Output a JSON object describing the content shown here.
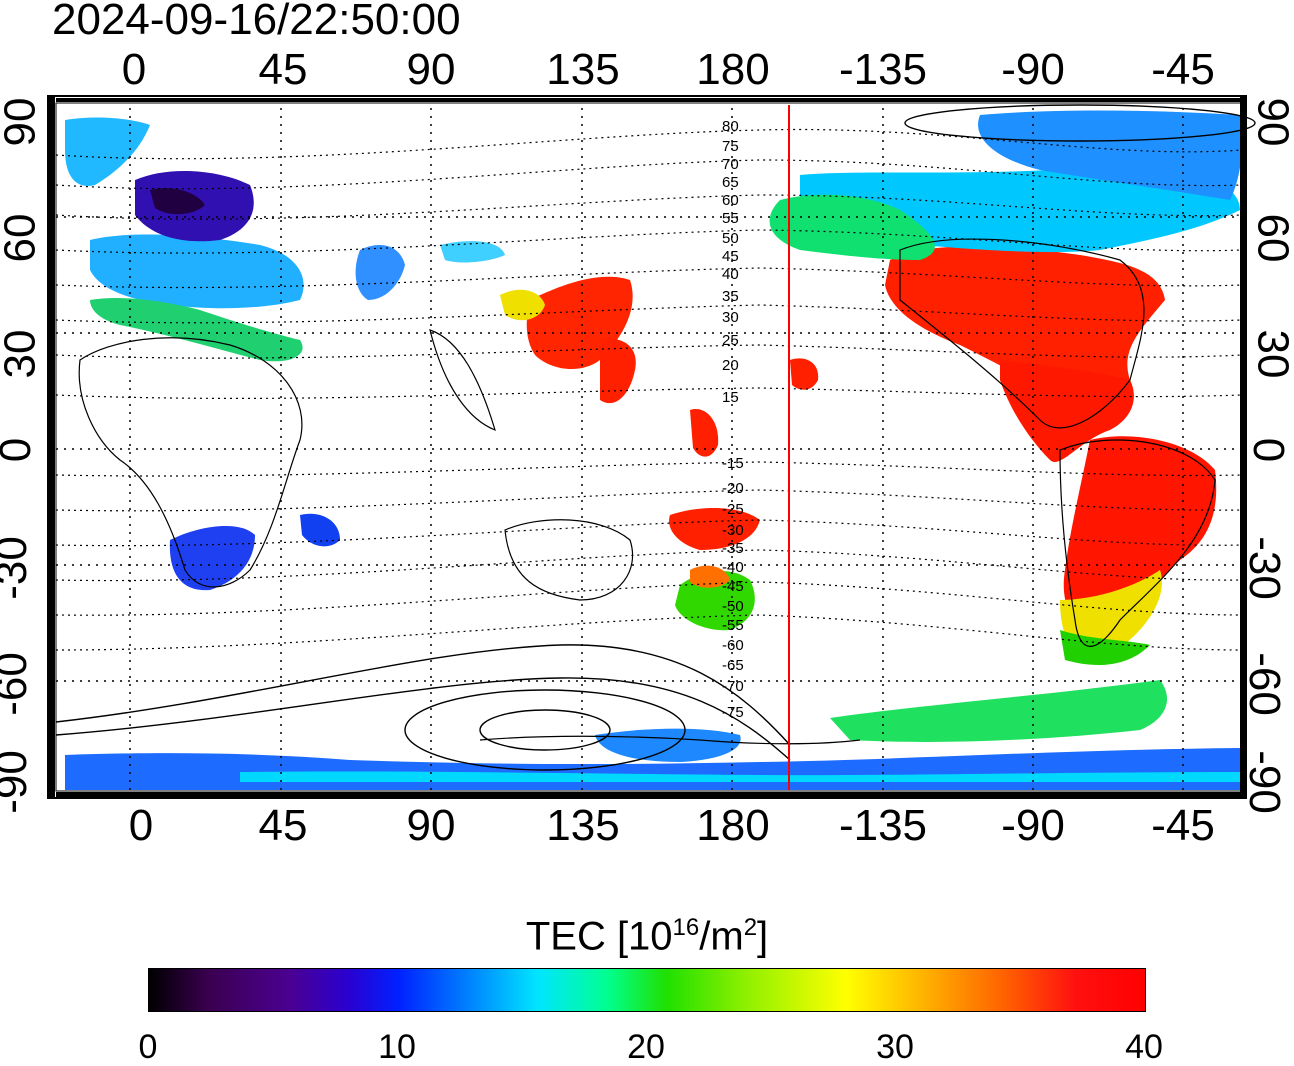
{
  "title": "2024-09-16/22:50:00",
  "lon_ticks": [
    "0",
    "45",
    "90",
    "135",
    "180",
    "-135",
    "-90",
    "-45"
  ],
  "lat_ticks": [
    "90",
    "60",
    "30",
    "0",
    "-30",
    "-60",
    "-90"
  ],
  "contour_labels": [
    "80",
    "75",
    "70",
    "65",
    "60",
    "55",
    "50",
    "45",
    "40",
    "35",
    "30",
    "25",
    "20",
    "15",
    "-15",
    "-20",
    "-25",
    "-30",
    "-35",
    "-40",
    "-45",
    "-50",
    "-55",
    "-60",
    "-65",
    "-70",
    "-75"
  ],
  "colorbar": {
    "label_prefix": "TEC  [10",
    "label_exp": "16",
    "label_mid": "/m",
    "label_exp2": "2",
    "label_suffix": "]",
    "ticks": [
      "0",
      "10",
      "20",
      "30",
      "40"
    ]
  },
  "colors": {
    "terminator": "#ff0000",
    "high": "#ff1a00",
    "mid": "#00e060",
    "low": "#1040ff"
  }
}
